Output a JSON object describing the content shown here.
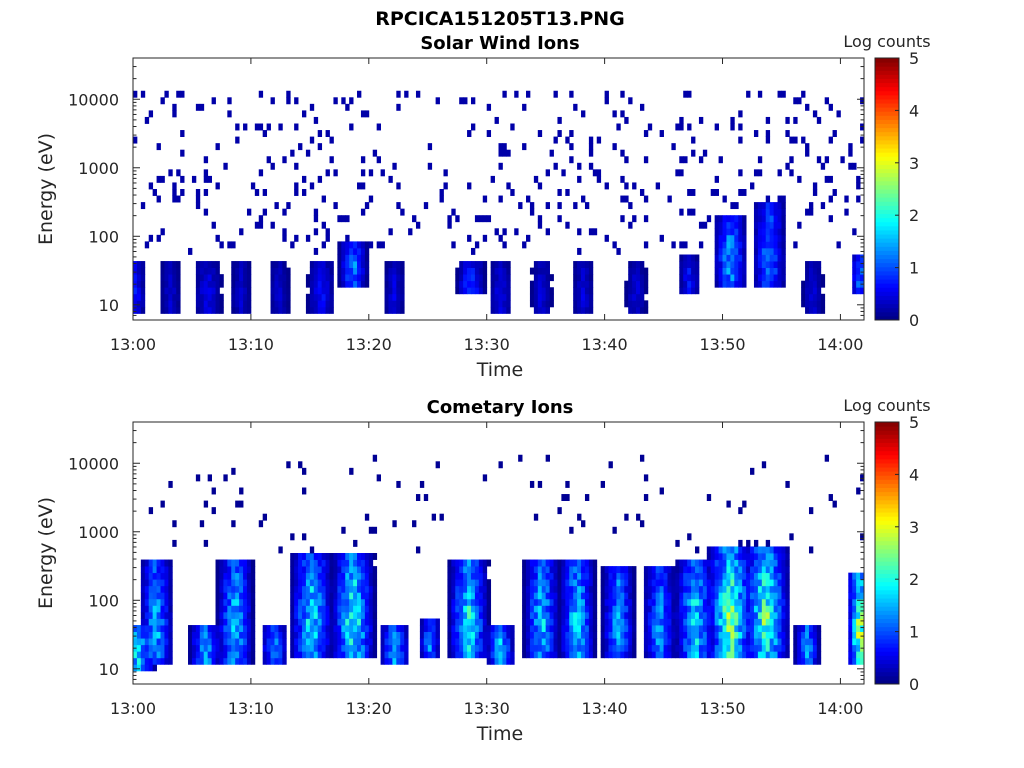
{
  "figure": {
    "title": "RPCICA151205T13.PNG"
  },
  "chart_data": [
    {
      "type": "heatmap",
      "title": "Solar Wind Ions",
      "xlabel": "Time",
      "ylabel": "Energy (eV)",
      "x_range": [
        "13:00",
        "14:02"
      ],
      "x_ticks": [
        "13:00",
        "13:10",
        "13:20",
        "13:30",
        "13:40",
        "13:50",
        "14:00"
      ],
      "y_scale": "log",
      "y_range": [
        6,
        40000
      ],
      "y_ticks": [
        "10",
        "100",
        "1000",
        "10000"
      ],
      "colorbar": {
        "label": "Log counts",
        "min": 0,
        "max": 5,
        "ticks": [
          "0",
          "1",
          "2",
          "3",
          "4",
          "5"
        ],
        "colormap": "jet"
      },
      "background_noise": {
        "energy_range_eV": [
          50,
          12000
        ],
        "level_log_counts": 0.2
      },
      "bursts": [
        {
          "time_min": 0.0,
          "e_low_eV": 8,
          "e_high_eV": 40,
          "peak": 0.9,
          "width_min": 0.6
        },
        {
          "time_min": 3.0,
          "e_low_eV": 8,
          "e_high_eV": 40,
          "peak": 0.5,
          "width_min": 0.6
        },
        {
          "time_min": 6.2,
          "e_low_eV": 8,
          "e_high_eV": 40,
          "peak": 0.7,
          "width_min": 0.8
        },
        {
          "time_min": 9.0,
          "e_low_eV": 8,
          "e_high_eV": 40,
          "peak": 0.5,
          "width_min": 0.6
        },
        {
          "time_min": 12.2,
          "e_low_eV": 8,
          "e_high_eV": 40,
          "peak": 0.5,
          "width_min": 0.6
        },
        {
          "time_min": 15.8,
          "e_low_eV": 8,
          "e_high_eV": 40,
          "peak": 0.8,
          "width_min": 0.8
        },
        {
          "time_min": 18.5,
          "e_low_eV": 20,
          "e_high_eV": 90,
          "peak": 1.6,
          "width_min": 0.8
        },
        {
          "time_min": 22.0,
          "e_low_eV": 8,
          "e_high_eV": 40,
          "peak": 0.6,
          "width_min": 0.6
        },
        {
          "time_min": 28.5,
          "e_low_eV": 15,
          "e_high_eV": 40,
          "peak": 1.2,
          "width_min": 0.8
        },
        {
          "time_min": 31.0,
          "e_low_eV": 8,
          "e_high_eV": 40,
          "peak": 0.7,
          "width_min": 0.6
        },
        {
          "time_min": 34.5,
          "e_low_eV": 8,
          "e_high_eV": 40,
          "peak": 0.6,
          "width_min": 0.6
        },
        {
          "time_min": 38.0,
          "e_low_eV": 8,
          "e_high_eV": 40,
          "peak": 0.6,
          "width_min": 0.6
        },
        {
          "time_min": 42.5,
          "e_low_eV": 8,
          "e_high_eV": 40,
          "peak": 0.6,
          "width_min": 0.6
        },
        {
          "time_min": 47.0,
          "e_low_eV": 15,
          "e_high_eV": 60,
          "peak": 0.8,
          "width_min": 0.6
        },
        {
          "time_min": 50.5,
          "e_low_eV": 20,
          "e_high_eV": 200,
          "peak": 1.8,
          "width_min": 0.9
        },
        {
          "time_min": 53.8,
          "e_low_eV": 20,
          "e_high_eV": 350,
          "peak": 1.6,
          "width_min": 0.9
        },
        {
          "time_min": 57.5,
          "e_low_eV": 8,
          "e_high_eV": 40,
          "peak": 0.6,
          "width_min": 0.6
        },
        {
          "time_min": 61.5,
          "e_low_eV": 15,
          "e_high_eV": 50,
          "peak": 1.7,
          "width_min": 0.5
        }
      ]
    },
    {
      "type": "heatmap",
      "title": "Cometary Ions",
      "xlabel": "Time",
      "ylabel": "Energy (eV)",
      "x_range": [
        "13:00",
        "14:02"
      ],
      "x_ticks": [
        "13:00",
        "13:10",
        "13:20",
        "13:30",
        "13:40",
        "13:50",
        "14:00"
      ],
      "y_scale": "log",
      "y_range": [
        6,
        40000
      ],
      "y_ticks": [
        "10",
        "100",
        "1000",
        "10000"
      ],
      "colorbar": {
        "label": "Log counts",
        "min": 0,
        "max": 5,
        "ticks": [
          "0",
          "1",
          "2",
          "3",
          "4",
          "5"
        ],
        "colormap": "jet"
      },
      "background_noise": {
        "energy_range_eV": [
          500,
          12000
        ],
        "level_log_counts": 0.1
      },
      "bursts": [
        {
          "time_min": 0.2,
          "e_low_eV": 10,
          "e_high_eV": 45,
          "peak": 2.3,
          "width_min": 1.0
        },
        {
          "time_min": 1.8,
          "e_low_eV": 12,
          "e_high_eV": 400,
          "peak": 1.9,
          "width_min": 0.9
        },
        {
          "time_min": 6.0,
          "e_low_eV": 12,
          "e_high_eV": 45,
          "peak": 2.0,
          "width_min": 0.9
        },
        {
          "time_min": 8.5,
          "e_low_eV": 12,
          "e_high_eV": 400,
          "peak": 2.1,
          "width_min": 1.0
        },
        {
          "time_min": 11.8,
          "e_low_eV": 12,
          "e_high_eV": 45,
          "peak": 1.8,
          "width_min": 0.7
        },
        {
          "time_min": 15.0,
          "e_low_eV": 15,
          "e_high_eV": 500,
          "peak": 2.2,
          "width_min": 1.2
        },
        {
          "time_min": 18.5,
          "e_low_eV": 15,
          "e_high_eV": 500,
          "peak": 2.6,
          "width_min": 1.2
        },
        {
          "time_min": 22.0,
          "e_low_eV": 12,
          "e_high_eV": 45,
          "peak": 2.0,
          "width_min": 0.8
        },
        {
          "time_min": 25.0,
          "e_low_eV": 15,
          "e_high_eV": 50,
          "peak": 1.7,
          "width_min": 0.6
        },
        {
          "time_min": 28.3,
          "e_low_eV": 15,
          "e_high_eV": 400,
          "peak": 2.4,
          "width_min": 1.1
        },
        {
          "time_min": 31.0,
          "e_low_eV": 12,
          "e_high_eV": 45,
          "peak": 2.0,
          "width_min": 0.8
        },
        {
          "time_min": 34.5,
          "e_low_eV": 15,
          "e_high_eV": 400,
          "peak": 2.1,
          "width_min": 1.0
        },
        {
          "time_min": 37.5,
          "e_low_eV": 15,
          "e_high_eV": 400,
          "peak": 2.2,
          "width_min": 1.0
        },
        {
          "time_min": 41.0,
          "e_low_eV": 15,
          "e_high_eV": 300,
          "peak": 1.9,
          "width_min": 0.9
        },
        {
          "time_min": 44.5,
          "e_low_eV": 15,
          "e_high_eV": 300,
          "peak": 1.8,
          "width_min": 0.9
        },
        {
          "time_min": 47.5,
          "e_low_eV": 15,
          "e_high_eV": 400,
          "peak": 2.3,
          "width_min": 1.1
        },
        {
          "time_min": 50.5,
          "e_low_eV": 15,
          "e_high_eV": 600,
          "peak": 3.0,
          "width_min": 1.3
        },
        {
          "time_min": 53.5,
          "e_low_eV": 15,
          "e_high_eV": 600,
          "peak": 2.8,
          "width_min": 1.3
        },
        {
          "time_min": 57.0,
          "e_low_eV": 12,
          "e_high_eV": 45,
          "peak": 1.8,
          "width_min": 0.7
        },
        {
          "time_min": 61.5,
          "e_low_eV": 12,
          "e_high_eV": 250,
          "peak": 3.3,
          "width_min": 0.7
        }
      ]
    }
  ]
}
